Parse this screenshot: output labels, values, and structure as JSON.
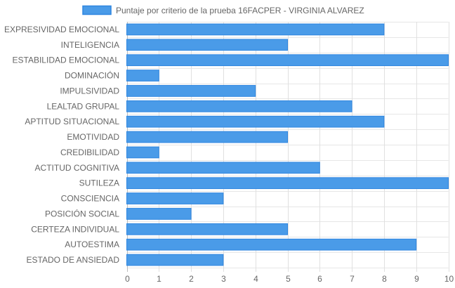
{
  "chart_data": {
    "type": "bar",
    "orientation": "horizontal",
    "categories": [
      "EXPRESIVIDAD EMOCIONAL",
      "INTELIGENCIA",
      "ESTABILIDAD EMOCIONAL",
      "DOMINACIÓN",
      "IMPULSIVIDAD",
      "LEALTAD GRUPAL",
      "APTITUD SITUACIONAL",
      "EMOTIVIDAD",
      "CREDIBILIDAD",
      "ACTITUD COGNITIVA",
      "SUTILEZA",
      "CONSCIENCIA",
      "POSICIÓN SOCIAL",
      "CERTEZA INDIVIDUAL",
      "AUTOESTIMA",
      "ESTADO DE ANSIEDAD"
    ],
    "series": [
      {
        "name": "Puntaje por criterio de la prueba 16FACPER - VIRGINIA ALVAREZ",
        "values": [
          8,
          5,
          10,
          1,
          4,
          7,
          8,
          5,
          1,
          6,
          10,
          3,
          2,
          5,
          9,
          3
        ],
        "color": "#4a9be8",
        "border_color": "#2f86e0"
      }
    ],
    "xlim": [
      0,
      10
    ],
    "x_ticks": [
      "0",
      "1",
      "2",
      "3",
      "4",
      "5",
      "6",
      "7",
      "8",
      "9",
      "10"
    ],
    "grid": true,
    "legend_position": "top",
    "title": "",
    "xlabel": "",
    "ylabel": ""
  }
}
